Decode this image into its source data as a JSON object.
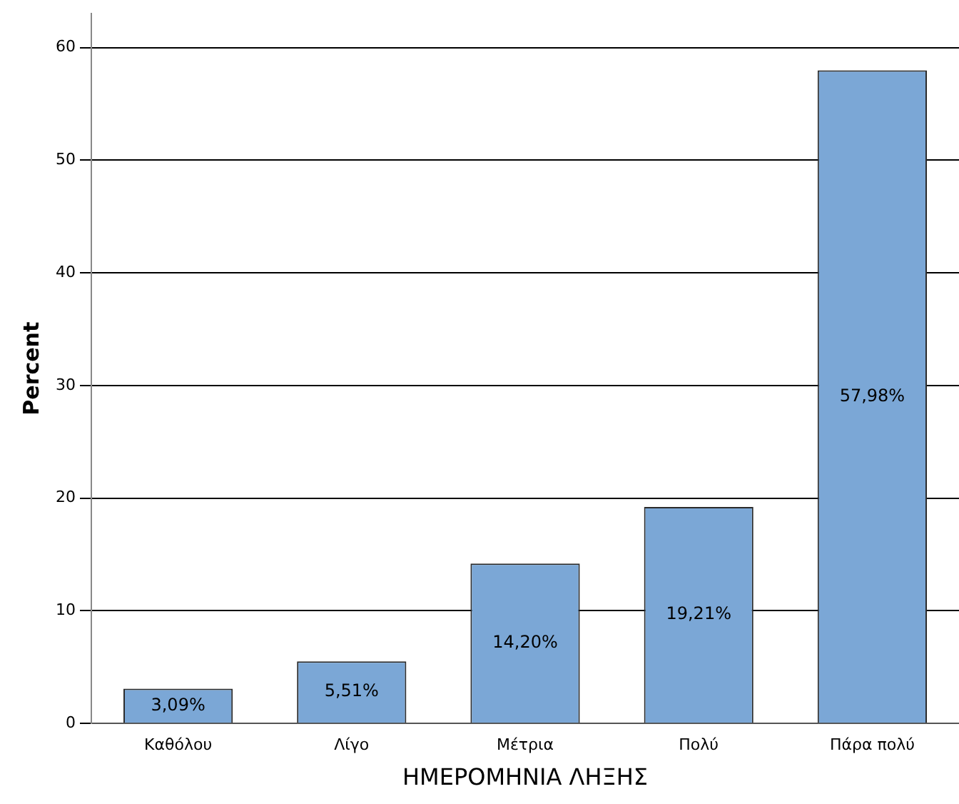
{
  "chart_data": {
    "type": "bar",
    "xlabel": "ΗΜΕΡΟΜΗΝΙΑ ΛΗΞΗΣ",
    "ylabel": "Percent",
    "categories": [
      "Καθόλου",
      "Λίγο",
      "Μέτρια",
      "Πολύ",
      "Πάρα πολύ"
    ],
    "values": [
      3.09,
      5.51,
      14.2,
      19.21,
      57.98
    ],
    "value_labels": [
      "3,09%",
      "5,51%",
      "14,20%",
      "19,21%",
      "57,98%"
    ],
    "color": "#7ba7d6",
    "ylim": [
      0,
      63
    ],
    "yticks": [
      0,
      10,
      20,
      30,
      40,
      50,
      60
    ],
    "grid": "y",
    "legend": false
  }
}
